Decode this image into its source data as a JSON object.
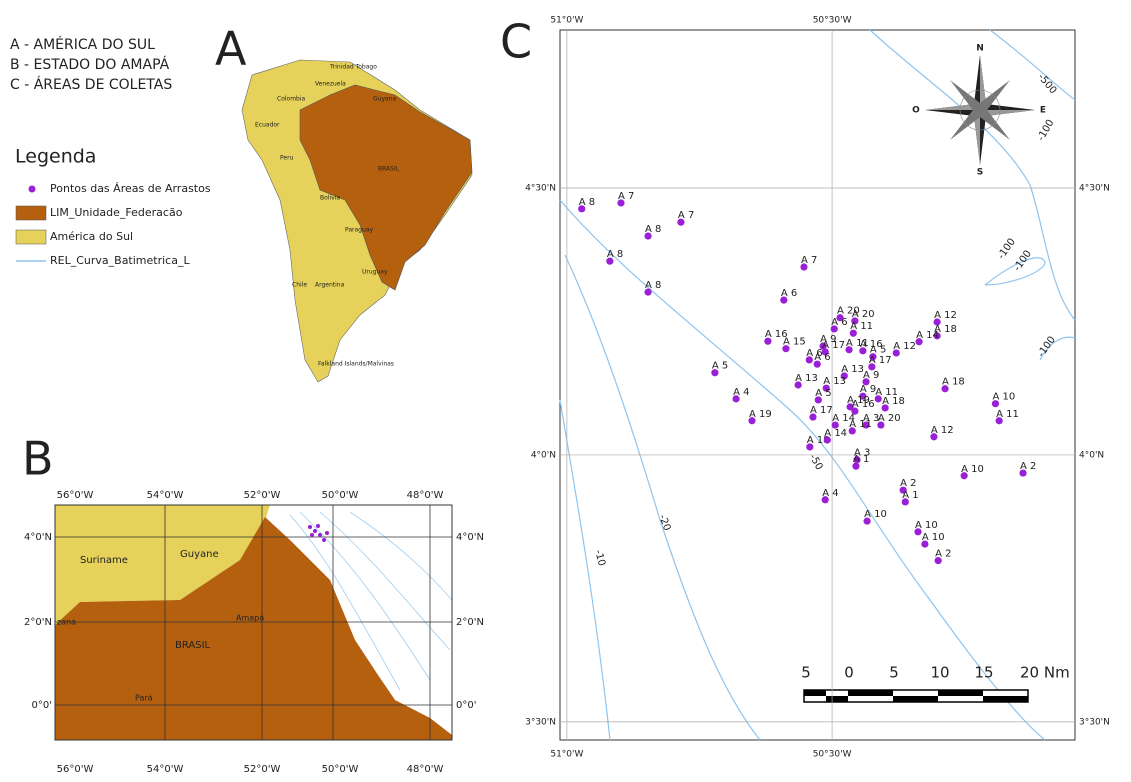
{
  "captions": [
    "A - AMÉRICA DO SUL",
    "B - ESTADO DO AMAPÁ",
    "C - ÁREAS DE COLETAS"
  ],
  "legend": {
    "title": "Legenda",
    "items": [
      "Pontos das Áreas de Arrastos",
      "LIM_Unidade_Federacão",
      "América do Sul",
      "REL_Curva_Batimetrica_L"
    ]
  },
  "panel_a": {
    "letter": "A",
    "countries": [
      "Trinidad Tobago",
      "Venezuela",
      "Colombia",
      "Guyana",
      "Ecuador",
      "Peru",
      "BRASIL",
      "Bolivia",
      "Paraguay",
      "Chile",
      "Argentina",
      "Uruguay",
      "Falkland Islands/Malvinas"
    ]
  },
  "panel_b": {
    "letter": "B",
    "x_labels": [
      "56°0'W",
      "54°0'W",
      "52°0'W",
      "50°0'W",
      "48°0'W"
    ],
    "y_labels": [
      "4°0'N",
      "2°0'N",
      "0°0'"
    ],
    "places": [
      "Suriname",
      "Guyane",
      "zana",
      "BRASIL",
      "Amapá",
      "Pará"
    ]
  },
  "panel_c": {
    "letter": "C",
    "xlim": [
      -51.013,
      -50.042
    ],
    "ylim": [
      3.466,
      4.796
    ],
    "lon_ticks": [
      {
        "value": -51,
        "label": "51°0'W"
      },
      {
        "value": -50.5,
        "label": "50°30'W"
      }
    ],
    "lat_ticks": [
      {
        "value": 4.5,
        "label": "4°30'N"
      },
      {
        "value": 4,
        "label": "4°0'N"
      },
      {
        "value": 3.5,
        "label": "3°30'N"
      }
    ],
    "point_color": "#9a1fd6",
    "points": [
      {
        "label": "A 8",
        "lon": -50.972,
        "lat": 4.461
      },
      {
        "label": "A 7",
        "lon": -50.898,
        "lat": 4.472
      },
      {
        "label": "A 8",
        "lon": -50.847,
        "lat": 4.41
      },
      {
        "label": "A 7",
        "lon": -50.785,
        "lat": 4.436
      },
      {
        "label": "A 8",
        "lon": -50.919,
        "lat": 4.363
      },
      {
        "label": "A 8",
        "lon": -50.847,
        "lat": 4.305
      },
      {
        "label": "A 7",
        "lon": -50.553,
        "lat": 4.352
      },
      {
        "label": "A 6",
        "lon": -50.591,
        "lat": 4.29
      },
      {
        "label": "A 20",
        "lon": -50.485,
        "lat": 4.257
      },
      {
        "label": "A 6",
        "lon": -50.496,
        "lat": 4.236
      },
      {
        "label": "A 20",
        "lon": -50.457,
        "lat": 4.251
      },
      {
        "label": "A 11",
        "lon": -50.46,
        "lat": 4.228
      },
      {
        "label": "A 12",
        "lon": -50.302,
        "lat": 4.249
      },
      {
        "label": "A 18",
        "lon": -50.302,
        "lat": 4.223
      },
      {
        "label": "A 14",
        "lon": -50.336,
        "lat": 4.212
      },
      {
        "label": "A 16",
        "lon": -50.621,
        "lat": 4.213
      },
      {
        "label": "A 15",
        "lon": -50.587,
        "lat": 4.199
      },
      {
        "label": "A 9",
        "lon": -50.517,
        "lat": 4.204
      },
      {
        "label": "A 17",
        "lon": -50.513,
        "lat": 4.193
      },
      {
        "label": "A 11",
        "lon": -50.468,
        "lat": 4.197
      },
      {
        "label": "A 16",
        "lon": -50.442,
        "lat": 4.195
      },
      {
        "label": "A 5",
        "lon": -50.423,
        "lat": 4.184
      },
      {
        "label": "A 12",
        "lon": -50.379,
        "lat": 4.191
      },
      {
        "label": "A 6",
        "lon": -50.543,
        "lat": 4.178
      },
      {
        "label": "A 6",
        "lon": -50.528,
        "lat": 4.17
      },
      {
        "label": "A 5",
        "lon": -50.721,
        "lat": 4.154
      },
      {
        "label": "A 13",
        "lon": -50.477,
        "lat": 4.148
      },
      {
        "label": "A 17",
        "lon": -50.425,
        "lat": 4.165
      },
      {
        "label": "A 13",
        "lon": -50.564,
        "lat": 4.131
      },
      {
        "label": "A 13",
        "lon": -50.511,
        "lat": 4.125
      },
      {
        "label": "A 9",
        "lon": -50.436,
        "lat": 4.137
      },
      {
        "label": "A 18",
        "lon": -50.287,
        "lat": 4.124
      },
      {
        "label": "A 4",
        "lon": -50.681,
        "lat": 4.105
      },
      {
        "label": "A 5",
        "lon": -50.526,
        "lat": 4.103
      },
      {
        "label": "A 9",
        "lon": -50.442,
        "lat": 4.11
      },
      {
        "label": "A 11",
        "lon": -50.413,
        "lat": 4.105
      },
      {
        "label": "A 19",
        "lon": -50.466,
        "lat": 4.09
      },
      {
        "label": "A 18",
        "lon": -50.4,
        "lat": 4.088
      },
      {
        "label": "A 17",
        "lon": -50.536,
        "lat": 4.071
      },
      {
        "label": "A 16",
        "lon": -50.457,
        "lat": 4.082
      },
      {
        "label": "A 20",
        "lon": -50.408,
        "lat": 4.056
      },
      {
        "label": "A 14",
        "lon": -50.494,
        "lat": 4.056
      },
      {
        "label": "A 3",
        "lon": -50.436,
        "lat": 4.056
      },
      {
        "label": "A 11",
        "lon": -50.462,
        "lat": 4.045
      },
      {
        "label": "A 19",
        "lon": -50.651,
        "lat": 4.064
      },
      {
        "label": "A 18",
        "lon": -50.542,
        "lat": 4.015
      },
      {
        "label": "A 14",
        "lon": -50.509,
        "lat": 4.028
      },
      {
        "label": "A 10",
        "lon": -50.192,
        "lat": 4.096
      },
      {
        "label": "A 11",
        "lon": -50.185,
        "lat": 4.064
      },
      {
        "label": "A 12",
        "lon": -50.308,
        "lat": 4.034
      },
      {
        "label": "A 3",
        "lon": -50.453,
        "lat": 3.991
      },
      {
        "label": "A 1",
        "lon": -50.455,
        "lat": 3.979
      },
      {
        "label": "A 10",
        "lon": -50.251,
        "lat": 3.961
      },
      {
        "label": "A 2",
        "lon": -50.14,
        "lat": 3.966
      },
      {
        "label": "A 2",
        "lon": -50.366,
        "lat": 3.934
      },
      {
        "label": "A 1",
        "lon": -50.362,
        "lat": 3.912
      },
      {
        "label": "A 4",
        "lon": -50.513,
        "lat": 3.916
      },
      {
        "label": "A 10",
        "lon": -50.434,
        "lat": 3.876
      },
      {
        "label": "A 10",
        "lon": -50.338,
        "lat": 3.856
      },
      {
        "label": "A 10",
        "lon": -50.325,
        "lat": 3.833
      },
      {
        "label": "A 2",
        "lon": -50.3,
        "lat": 3.802
      }
    ],
    "scale_labels": [
      "5",
      "0",
      "5",
      "10",
      "15",
      "20 Nm"
    ],
    "compass": [
      "N",
      "S",
      "E",
      "O"
    ],
    "contour_labels": [
      "-500",
      "-100",
      "-100",
      "-100",
      "-100",
      "-50",
      "-20",
      "-10"
    ]
  }
}
